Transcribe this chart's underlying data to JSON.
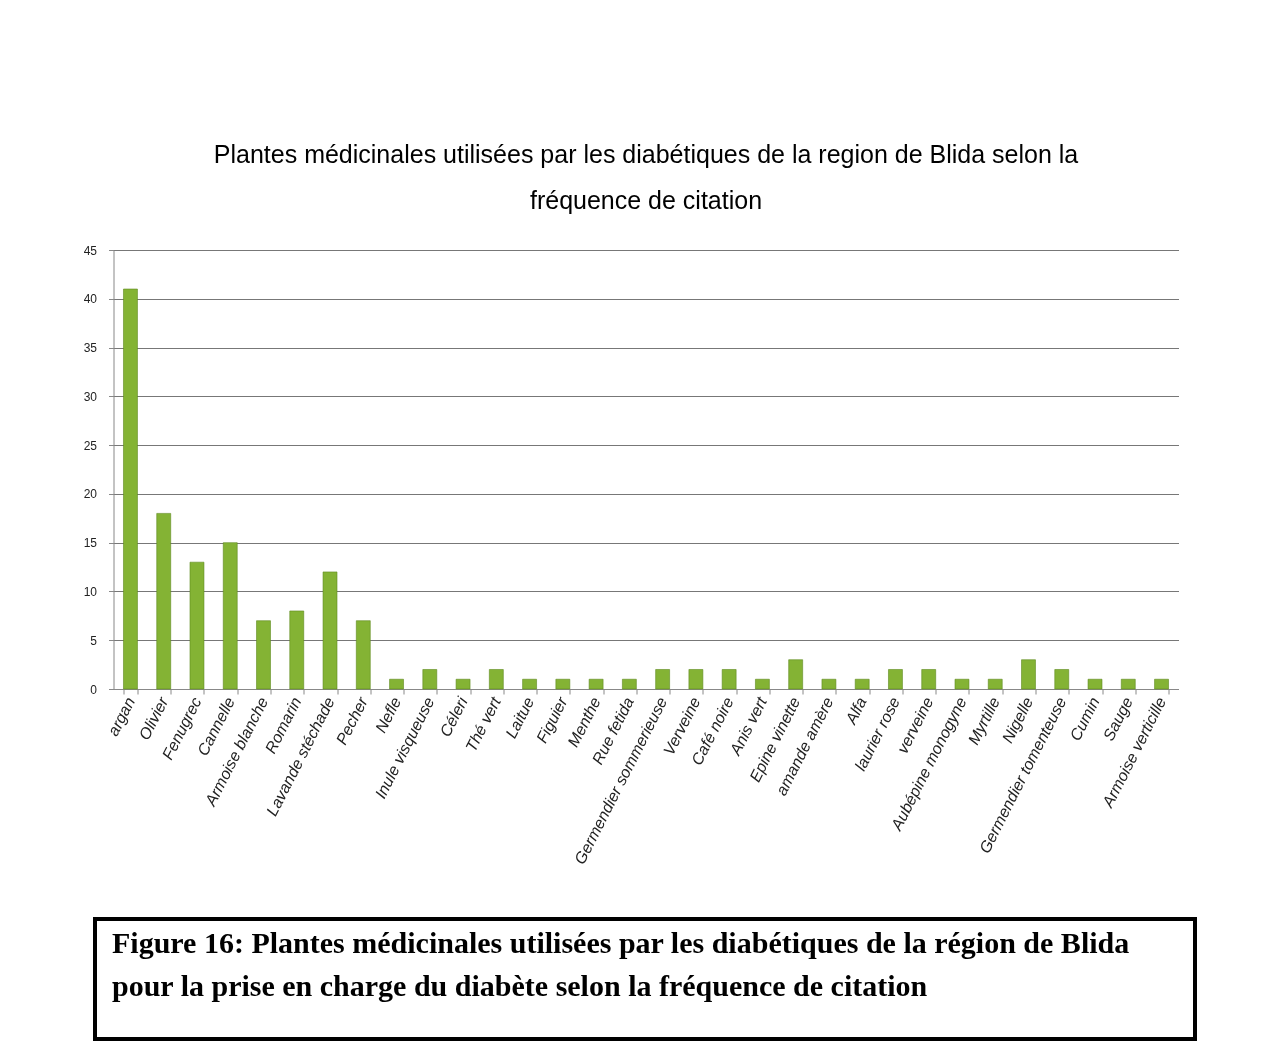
{
  "chart_data": {
    "type": "bar",
    "title": "Plantes médicinales utilisées par les diabétiques de la region de Blida selon la fréquence de citation",
    "categories": [
      "argan",
      "Olivier",
      "Fenugrec",
      "Cannelle",
      "Armoise blanche",
      "Romarin",
      "Lavande stéchade",
      "Pecher",
      "Nefle",
      "Inule visqueuse",
      "Céleri",
      "Thé vert",
      "Laitue",
      "Figuier",
      "Menthe",
      "Rue fetida",
      "Germendier sommerieuse",
      "Verveine",
      "Café noire",
      "Anis vert",
      "Epine vinette",
      "amande amère",
      "Alfa",
      "laurier rose",
      "verveine",
      "Aubépine monogyne",
      "Myrtille",
      "Nigelle",
      "Germendier tomenteuse",
      "Cumin",
      "Sauge",
      "Armoise verticille"
    ],
    "values": [
      41,
      18,
      13,
      15,
      7,
      8,
      12,
      7,
      1,
      2,
      1,
      2,
      1,
      1,
      1,
      1,
      2,
      2,
      2,
      1,
      3,
      1,
      1,
      2,
      2,
      1,
      1,
      3,
      2,
      1,
      1,
      1
    ],
    "color": "#84b334",
    "ylim": [
      0,
      45
    ],
    "yticks": [
      0,
      5,
      10,
      15,
      20,
      25,
      30,
      35,
      40,
      45
    ],
    "grid": "y",
    "annotations": [
      "Figure 16: Plantes médicinales utilisées par les diabétiques de la région de Blida pour la prise en charge du diabète selon la fréquence de citation"
    ]
  }
}
